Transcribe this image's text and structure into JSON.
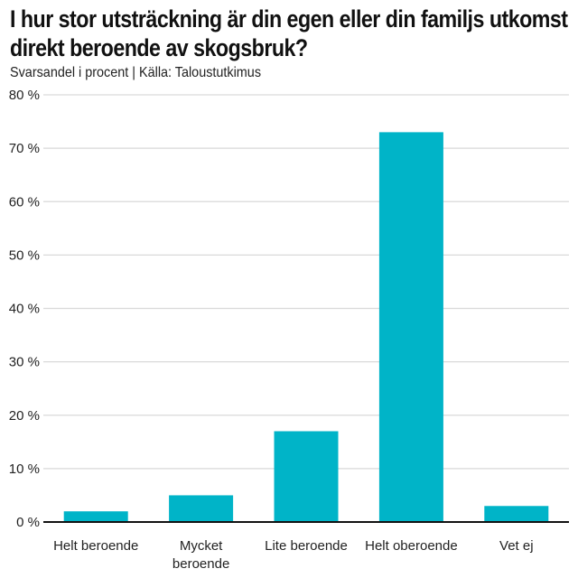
{
  "title": "I hur stor utsträckning är din egen eller din familjs utkomst direkt beroende av skogsbruk?",
  "subtitle": "Svarsandel i procent | Källa: Taloustutkimus",
  "colors": {
    "bar": "#00b4c8",
    "grid": "#d9d9d9",
    "axis": "#111111"
  },
  "chart_data": {
    "type": "bar",
    "title": "I hur stor utsträckning är din egen eller din familjs utkomst direkt beroende av skogsbruk?",
    "subtitle": "Svarsandel i procent | Källa: Taloustutkimus",
    "categories": [
      "Helt beroende",
      "Mycket beroende",
      "Lite beroende",
      "Helt oberoende",
      "Vet ej"
    ],
    "category_lines": [
      [
        "Helt beroende"
      ],
      [
        "Mycket",
        "beroende"
      ],
      [
        "Lite beroende"
      ],
      [
        "Helt oberoende"
      ],
      [
        "Vet ej"
      ]
    ],
    "values": [
      2,
      5,
      17,
      73,
      3
    ],
    "ylim": [
      0,
      80
    ],
    "yticks": [
      0,
      10,
      20,
      30,
      40,
      50,
      60,
      70,
      80
    ],
    "ytick_labels": [
      "0 %",
      "10 %",
      "20 %",
      "30 %",
      "40 %",
      "50 %",
      "60 %",
      "70 %",
      "80 %"
    ],
    "xlabel": "",
    "ylabel": "",
    "grid": true,
    "legend": false
  }
}
